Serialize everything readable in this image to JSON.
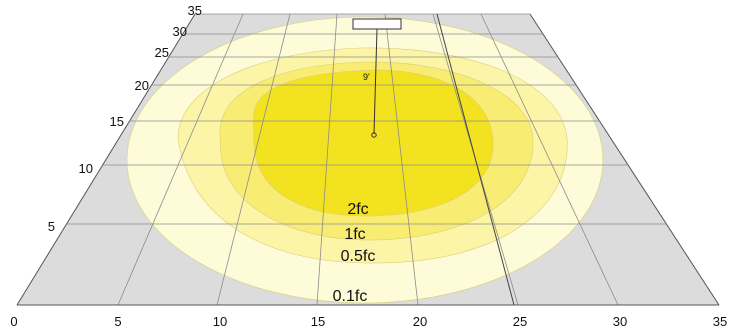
{
  "axes": {
    "x_ticks": [
      "0",
      "5",
      "10",
      "15",
      "20",
      "25",
      "30",
      "35"
    ],
    "y_ticks": [
      "5",
      "10",
      "15",
      "20",
      "25",
      "30",
      "35"
    ]
  },
  "fixture": {
    "mount_height_label": "9'"
  },
  "contours": [
    {
      "label": "0.1fc",
      "color": "#FDFBD8"
    },
    {
      "label": "0.5fc",
      "color": "#FCF5A8"
    },
    {
      "label": "1fc",
      "color": "#F8EC72"
    },
    {
      "label": "2fc",
      "color": "#F2E21F"
    }
  ],
  "colors": {
    "floor": "#DCDCDC",
    "grid": "#8C8C8C",
    "axis": "#555555"
  }
}
